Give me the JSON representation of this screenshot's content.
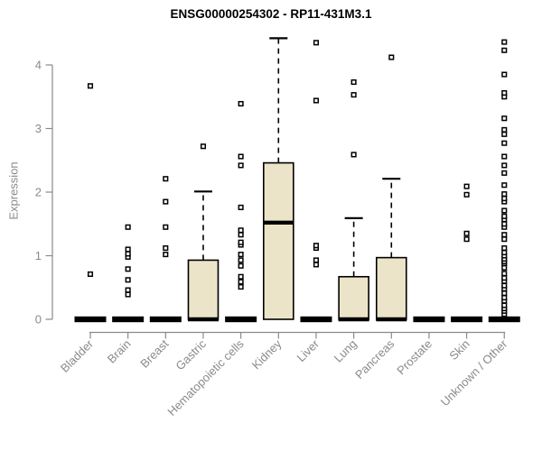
{
  "chart_data": {
    "type": "boxplot",
    "title": "ENSG00000254302 - RP11-431M3.1",
    "xlabel": "",
    "ylabel": "Expression",
    "ylim": [
      0,
      4.45
    ],
    "yticks": [
      0,
      1,
      2,
      3,
      4
    ],
    "grid": false,
    "legend": "none",
    "box_fill": "#ece4c8",
    "box_stroke": "#000000",
    "axis_color": "#8a8a8a",
    "outlier_marker": "open-square",
    "categories": [
      "Bladder",
      "Brain",
      "Breast",
      "Gastric",
      "Hematopoietic cells",
      "Kidney",
      "Liver",
      "Lung",
      "Pancreas",
      "Prostate",
      "Skin",
      "Unknown / Other"
    ],
    "series": [
      {
        "category": "Bladder",
        "q1": 0,
        "median": 0,
        "q3": 0,
        "whisker_low": 0,
        "whisker_high": 0,
        "outliers": [
          0.71,
          3.67
        ]
      },
      {
        "category": "Brain",
        "q1": 0,
        "median": 0,
        "q3": 0,
        "whisker_low": 0,
        "whisker_high": 0,
        "outliers": [
          0.39,
          0.46,
          0.62,
          0.79,
          0.98,
          1.03,
          1.1,
          1.45
        ]
      },
      {
        "category": "Breast",
        "q1": 0,
        "median": 0,
        "q3": 0,
        "whisker_low": 0,
        "whisker_high": 0,
        "outliers": [
          1.02,
          1.12,
          1.45,
          1.85,
          2.21
        ]
      },
      {
        "category": "Gastric",
        "q1": 0,
        "median": 0,
        "q3": 0.93,
        "whisker_low": 0,
        "whisker_high": 2.01,
        "outliers": [
          2.72
        ]
      },
      {
        "category": "Hematopoietic cells",
        "q1": 0,
        "median": 0,
        "q3": 0,
        "whisker_low": 0,
        "whisker_high": 0,
        "outliers": [
          0.51,
          0.59,
          0.67,
          0.84,
          0.93,
          1.02,
          1.17,
          1.21,
          1.33,
          1.4,
          1.76,
          2.42,
          2.56,
          3.39
        ]
      },
      {
        "category": "Kidney",
        "q1": 0,
        "median": 1.52,
        "q3": 2.46,
        "whisker_low": 0,
        "whisker_high": 4.42,
        "outliers": []
      },
      {
        "category": "Liver",
        "q1": 0,
        "median": 0,
        "q3": 0,
        "whisker_low": 0,
        "whisker_high": 0,
        "outliers": [
          0.86,
          0.93,
          1.12,
          1.16,
          3.44,
          4.35
        ]
      },
      {
        "category": "Lung",
        "q1": 0,
        "median": 0,
        "q3": 0.67,
        "whisker_low": 0,
        "whisker_high": 1.59,
        "outliers": [
          2.59,
          3.53,
          3.73
        ]
      },
      {
        "category": "Pancreas",
        "q1": 0,
        "median": 0,
        "q3": 0.97,
        "whisker_low": 0,
        "whisker_high": 2.21,
        "outliers": [
          4.12
        ]
      },
      {
        "category": "Prostate",
        "q1": 0,
        "median": 0,
        "q3": 0,
        "whisker_low": 0,
        "whisker_high": 0,
        "outliers": []
      },
      {
        "category": "Skin",
        "q1": 0,
        "median": 0,
        "q3": 0,
        "whisker_low": 0,
        "whisker_high": 0,
        "outliers": [
          1.26,
          1.35,
          1.96,
          2.09
        ]
      },
      {
        "category": "Unknown / Other",
        "q1": 0,
        "median": 0,
        "q3": 0,
        "whisker_low": 0,
        "whisker_high": 0,
        "outliers": [
          0.08,
          0.13,
          0.17,
          0.22,
          0.29,
          0.34,
          0.41,
          0.48,
          0.53,
          0.6,
          0.65,
          0.72,
          0.81,
          0.88,
          0.91,
          0.95,
          1.0,
          1.05,
          1.12,
          1.26,
          1.33,
          1.45,
          1.5,
          1.57,
          1.62,
          1.71,
          1.85,
          1.9,
          1.97,
          2.11,
          2.3,
          2.42,
          2.56,
          2.77,
          2.91,
          2.98,
          3.16,
          3.5,
          3.56,
          3.85,
          4.23,
          4.36
        ]
      }
    ]
  }
}
